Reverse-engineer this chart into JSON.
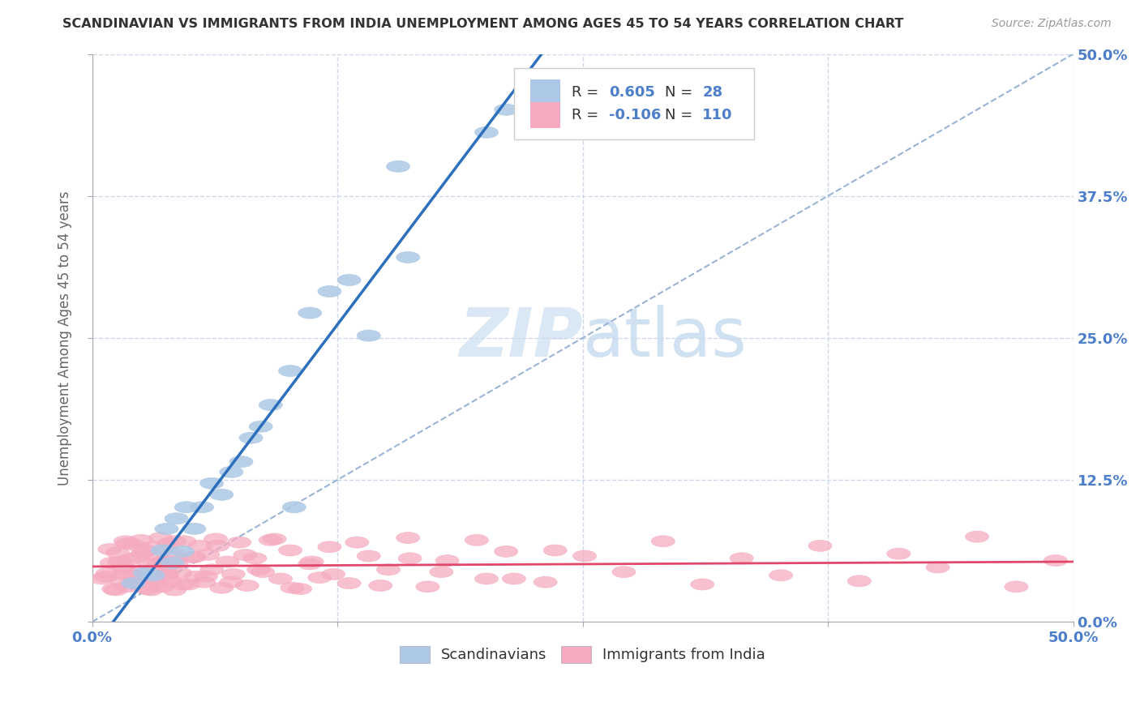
{
  "title": "SCANDINAVIAN VS IMMIGRANTS FROM INDIA UNEMPLOYMENT AMONG AGES 45 TO 54 YEARS CORRELATION CHART",
  "source": "Source: ZipAtlas.com",
  "ylabel": "Unemployment Among Ages 45 to 54 years",
  "xlim": [
    0,
    0.5
  ],
  "ylim": [
    0,
    0.5
  ],
  "scandinavian_color": "#adc8e6",
  "india_color": "#f5aabf",
  "scan_line_color": "#2c6fbd",
  "india_line_color": "#e0476a",
  "diag_line_color": "#9ab4d8",
  "R_scan": 0.605,
  "N_scan": 28,
  "R_india": -0.106,
  "N_india": 110,
  "background_color": "#ffffff",
  "grid_color": "#ccd8ea",
  "watermark_color": "#dae8f5",
  "title_color": "#333333",
  "axis_label_color": "#4d7ec9",
  "scan_x": [
    0.021,
    0.027,
    0.031,
    0.036,
    0.038,
    0.041,
    0.043,
    0.046,
    0.048,
    0.052,
    0.056,
    0.061,
    0.066,
    0.071,
    0.076,
    0.081,
    0.086,
    0.091,
    0.101,
    0.103,
    0.111,
    0.121,
    0.131,
    0.141,
    0.156,
    0.161,
    0.201,
    0.211
  ],
  "scan_y": [
    0.034,
    0.043,
    0.041,
    0.063,
    0.082,
    0.052,
    0.091,
    0.062,
    0.101,
    0.082,
    0.101,
    0.122,
    0.112,
    0.132,
    0.141,
    0.162,
    0.172,
    0.191,
    0.221,
    0.101,
    0.272,
    0.291,
    0.301,
    0.252,
    0.401,
    0.321,
    0.431,
    0.451
  ],
  "india_x": [
    0.005,
    0.008,
    0.01,
    0.012,
    0.013,
    0.015,
    0.016,
    0.017,
    0.018,
    0.019,
    0.02,
    0.021,
    0.022,
    0.023,
    0.024,
    0.025,
    0.026,
    0.027,
    0.028,
    0.029,
    0.03,
    0.031,
    0.032,
    0.033,
    0.034,
    0.035,
    0.036,
    0.037,
    0.038,
    0.039,
    0.04,
    0.041,
    0.042,
    0.043,
    0.045,
    0.047,
    0.049,
    0.051,
    0.053,
    0.055,
    0.057,
    0.059,
    0.061,
    0.063,
    0.066,
    0.069,
    0.072,
    0.075,
    0.079,
    0.083,
    0.087,
    0.091,
    0.096,
    0.101,
    0.106,
    0.111,
    0.116,
    0.121,
    0.131,
    0.141,
    0.151,
    0.161,
    0.171,
    0.181,
    0.201,
    0.211,
    0.231,
    0.251,
    0.271,
    0.291,
    0.311,
    0.331,
    0.351,
    0.371,
    0.391,
    0.411,
    0.431,
    0.451,
    0.471,
    0.491,
    0.007,
    0.009,
    0.011,
    0.014,
    0.016,
    0.018,
    0.022,
    0.026,
    0.03,
    0.034,
    0.038,
    0.042,
    0.046,
    0.052,
    0.058,
    0.064,
    0.071,
    0.078,
    0.085,
    0.093,
    0.102,
    0.112,
    0.123,
    0.135,
    0.147,
    0.162,
    0.178,
    0.196,
    0.215,
    0.236
  ],
  "india_y": [
    0.038,
    0.043,
    0.052,
    0.028,
    0.061,
    0.035,
    0.048,
    0.071,
    0.031,
    0.055,
    0.042,
    0.068,
    0.033,
    0.057,
    0.044,
    0.072,
    0.038,
    0.063,
    0.029,
    0.051,
    0.039,
    0.066,
    0.034,
    0.058,
    0.046,
    0.074,
    0.031,
    0.054,
    0.041,
    0.069,
    0.036,
    0.061,
    0.028,
    0.052,
    0.043,
    0.071,
    0.033,
    0.057,
    0.04,
    0.067,
    0.035,
    0.059,
    0.046,
    0.073,
    0.03,
    0.053,
    0.042,
    0.07,
    0.032,
    0.056,
    0.044,
    0.072,
    0.038,
    0.063,
    0.029,
    0.051,
    0.039,
    0.066,
    0.034,
    0.058,
    0.046,
    0.074,
    0.031,
    0.054,
    0.038,
    0.062,
    0.035,
    0.058,
    0.044,
    0.071,
    0.033,
    0.056,
    0.041,
    0.067,
    0.036,
    0.06,
    0.048,
    0.075,
    0.031,
    0.054,
    0.04,
    0.064,
    0.029,
    0.053,
    0.042,
    0.069,
    0.036,
    0.061,
    0.028,
    0.052,
    0.043,
    0.071,
    0.033,
    0.057,
    0.04,
    0.067,
    0.035,
    0.059,
    0.046,
    0.073,
    0.03,
    0.053,
    0.042,
    0.07,
    0.032,
    0.056,
    0.044,
    0.072,
    0.038,
    0.063
  ]
}
